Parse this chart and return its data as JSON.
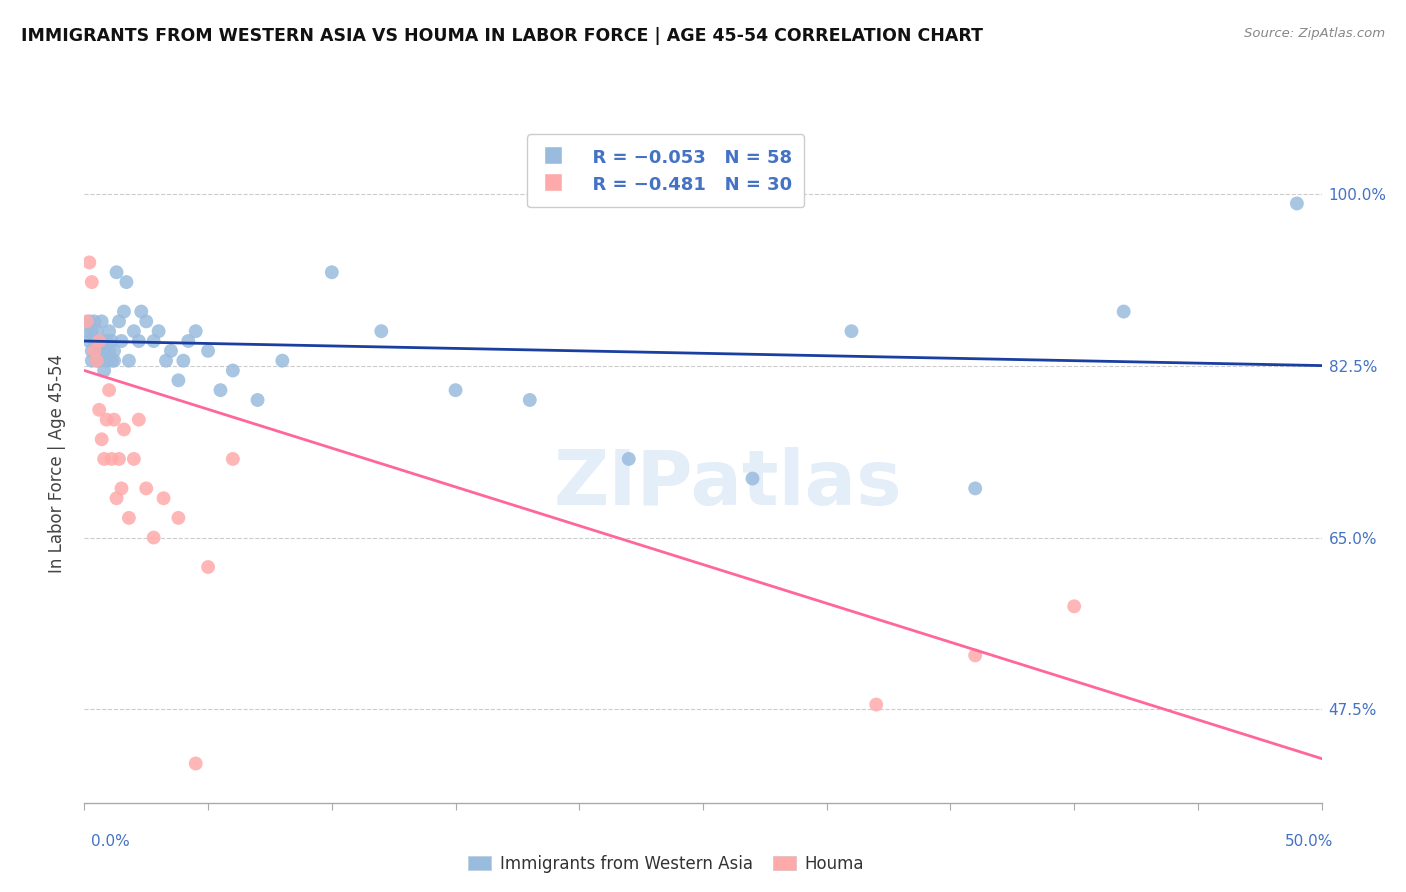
{
  "title": "IMMIGRANTS FROM WESTERN ASIA VS HOUMA IN LABOR FORCE | AGE 45-54 CORRELATION CHART",
  "source": "Source: ZipAtlas.com",
  "ylabel": "In Labor Force | Age 45-54",
  "ytick_labels": [
    "100.0%",
    "82.5%",
    "65.0%",
    "47.5%"
  ],
  "ytick_values": [
    1.0,
    0.825,
    0.65,
    0.475
  ],
  "xlim": [
    0.0,
    0.5
  ],
  "ylim": [
    0.38,
    1.07
  ],
  "watermark": "ZIPatlas",
  "legend_R_blue": "R = −0.053",
  "legend_N_blue": "N = 58",
  "legend_R_pink": "R = −0.481",
  "legend_N_pink": "N = 30",
  "blue_color": "#99BBDD",
  "pink_color": "#FFAAAA",
  "line_blue": "#1A3FA0",
  "line_pink": "#FF6699",
  "blue_scatter_x": [
    0.001,
    0.002,
    0.002,
    0.003,
    0.003,
    0.003,
    0.004,
    0.004,
    0.005,
    0.005,
    0.005,
    0.006,
    0.006,
    0.007,
    0.007,
    0.008,
    0.008,
    0.009,
    0.009,
    0.01,
    0.01,
    0.011,
    0.011,
    0.012,
    0.012,
    0.013,
    0.014,
    0.015,
    0.016,
    0.017,
    0.018,
    0.02,
    0.022,
    0.023,
    0.025,
    0.028,
    0.03,
    0.033,
    0.035,
    0.038,
    0.04,
    0.042,
    0.045,
    0.05,
    0.055,
    0.06,
    0.07,
    0.08,
    0.1,
    0.12,
    0.15,
    0.18,
    0.22,
    0.27,
    0.31,
    0.36,
    0.42,
    0.49
  ],
  "blue_scatter_y": [
    0.86,
    0.87,
    0.85,
    0.84,
    0.86,
    0.83,
    0.85,
    0.87,
    0.83,
    0.85,
    0.86,
    0.84,
    0.83,
    0.85,
    0.87,
    0.84,
    0.82,
    0.83,
    0.85,
    0.84,
    0.86,
    0.83,
    0.85,
    0.84,
    0.83,
    0.92,
    0.87,
    0.85,
    0.88,
    0.91,
    0.83,
    0.86,
    0.85,
    0.88,
    0.87,
    0.85,
    0.86,
    0.83,
    0.84,
    0.81,
    0.83,
    0.85,
    0.86,
    0.84,
    0.8,
    0.82,
    0.79,
    0.83,
    0.92,
    0.86,
    0.8,
    0.79,
    0.73,
    0.71,
    0.86,
    0.7,
    0.88,
    0.99
  ],
  "pink_scatter_x": [
    0.001,
    0.002,
    0.003,
    0.004,
    0.005,
    0.006,
    0.006,
    0.007,
    0.008,
    0.009,
    0.01,
    0.011,
    0.012,
    0.013,
    0.014,
    0.015,
    0.016,
    0.018,
    0.02,
    0.022,
    0.025,
    0.028,
    0.032,
    0.038,
    0.045,
    0.05,
    0.06,
    0.32,
    0.36,
    0.4
  ],
  "pink_scatter_y": [
    0.87,
    0.93,
    0.91,
    0.84,
    0.83,
    0.85,
    0.78,
    0.75,
    0.73,
    0.77,
    0.8,
    0.73,
    0.77,
    0.69,
    0.73,
    0.7,
    0.76,
    0.67,
    0.73,
    0.77,
    0.7,
    0.65,
    0.69,
    0.67,
    0.42,
    0.62,
    0.73,
    0.48,
    0.53,
    0.58
  ],
  "blue_trend_x": [
    0.0,
    0.5
  ],
  "blue_trend_y": [
    0.85,
    0.825
  ],
  "pink_trend_x": [
    0.0,
    0.5
  ],
  "pink_trend_y": [
    0.82,
    0.425
  ]
}
